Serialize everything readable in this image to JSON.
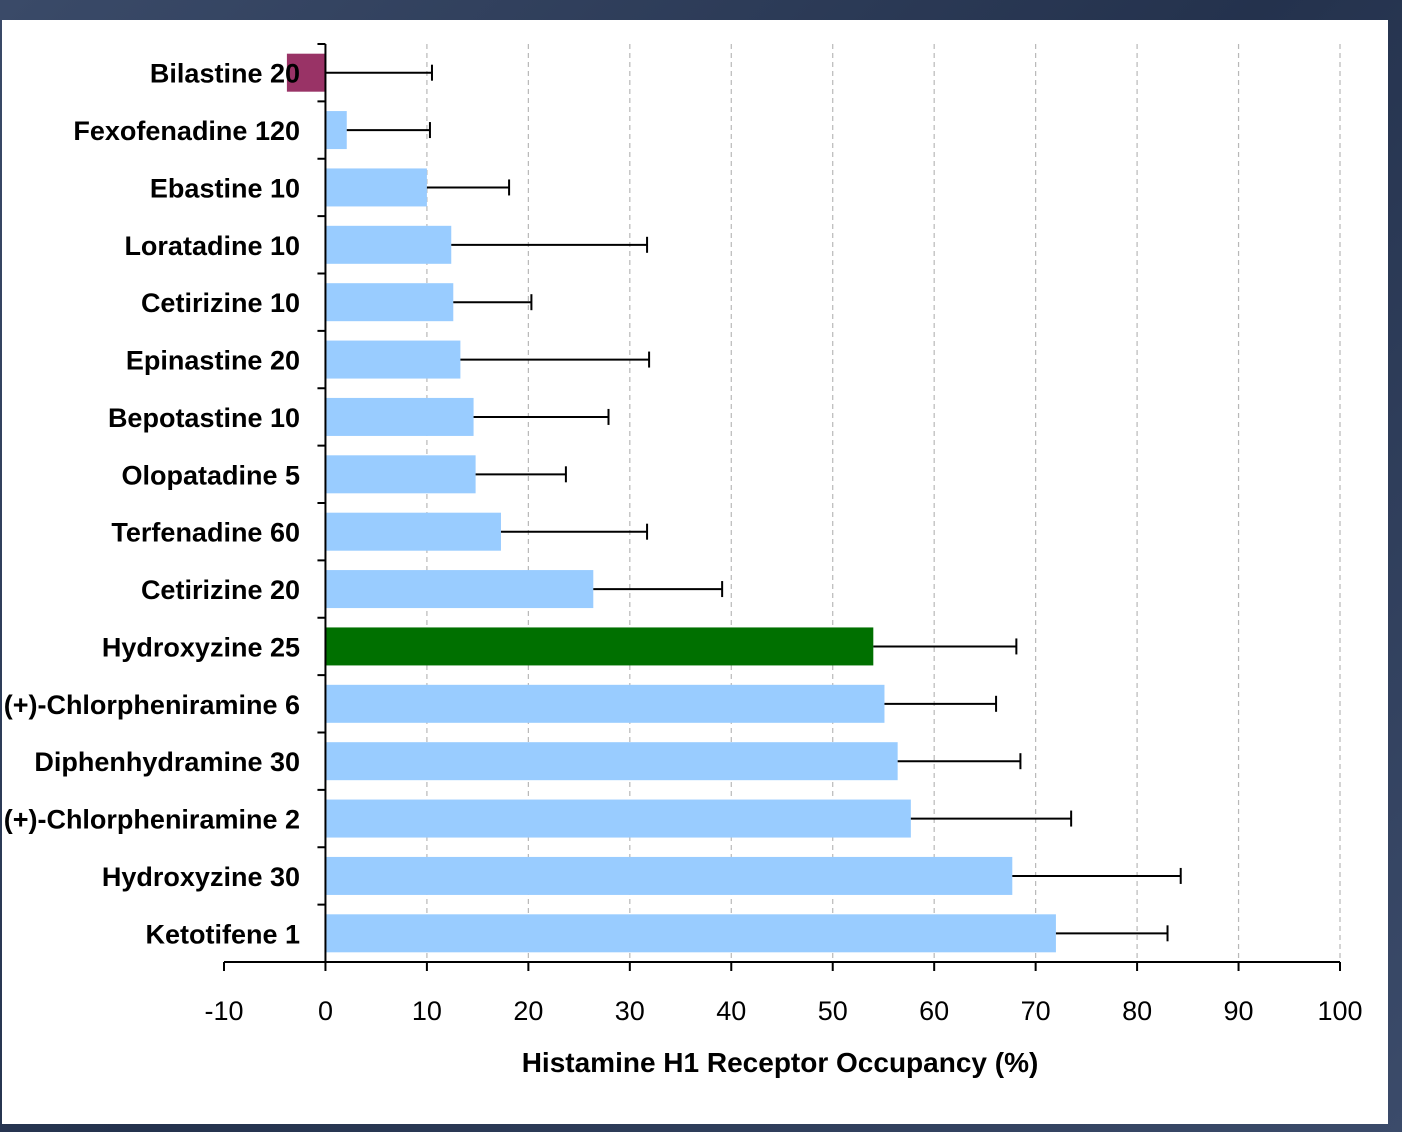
{
  "chart_data": {
    "type": "bar",
    "orientation": "horizontal",
    "title": "",
    "xlabel": "Histamine H1 Receptor Occupancy (%)",
    "ylabel": "",
    "xlim": [
      -10,
      100
    ],
    "xticks": [
      "-10",
      "0",
      "10",
      "20",
      "30",
      "40",
      "50",
      "60",
      "70",
      "80",
      "90",
      "100"
    ],
    "grid": "vertical dashed",
    "categories": [
      "Bilastine 20",
      "Fexofenadine 120",
      "Ebastine 10",
      "Loratadine 10",
      "Cetirizine 10",
      "Epinastine 20",
      "Bepotastine 10",
      "Olopatadine 5",
      "Terfenadine 60",
      "Cetirizine 20",
      "Hydroxyzine 25",
      "(+)-Chlorpheniramine 6",
      "Diphenhydramine 30",
      "(+)-Chlorpheniramine 2",
      "Hydroxyzine 30",
      "Ketotifene 1"
    ],
    "values": [
      -3.8,
      2.1,
      10.0,
      12.4,
      12.6,
      13.3,
      14.6,
      14.8,
      17.3,
      26.4,
      54.0,
      55.1,
      56.4,
      57.7,
      67.7,
      72.0
    ],
    "error_upper": [
      10.5,
      10.3,
      18.1,
      31.7,
      20.3,
      31.9,
      27.9,
      23.7,
      31.7,
      39.1,
      68.1,
      66.1,
      68.5,
      73.5,
      84.3,
      83.0
    ],
    "colors": [
      "#993366",
      "#99ccff",
      "#99ccff",
      "#99ccff",
      "#99ccff",
      "#99ccff",
      "#99ccff",
      "#99ccff",
      "#99ccff",
      "#99ccff",
      "#007000",
      "#99ccff",
      "#99ccff",
      "#99ccff",
      "#99ccff",
      "#99ccff"
    ]
  }
}
